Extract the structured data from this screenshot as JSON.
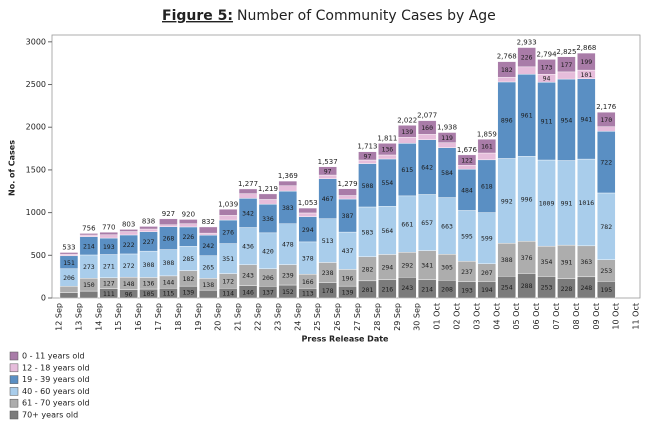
{
  "chart_data": {
    "type": "stacked_bar",
    "title_label": "Figure 5:",
    "title": "Number of Community Cases by Age",
    "x_label": "Press Release Date",
    "y_label": "No. of Cases",
    "categories": [
      "12 Sep",
      "13 Sep",
      "14 Sep",
      "15 Sep",
      "16 Sep",
      "17 Sep",
      "18 Sep",
      "19 Sep",
      "20 Sep",
      "21 Sep",
      "22 Sep",
      "23 Sep",
      "24 Sep",
      "25 Sep",
      "26 Sep",
      "27 Sep",
      "28 Sep",
      "29 Sep",
      "30 Sep",
      "01 Oct",
      "02 Oct",
      "03 Oct",
      "04 Oct",
      "05 Oct",
      "06 Oct",
      "07 Oct",
      "08 Oct",
      "09 Oct",
      "10 Oct",
      "11 Oct"
    ],
    "series": [
      {
        "name": "70+ years old",
        "color": "#7b7b7b",
        "values": [
          62,
          81,
          111,
          96,
          105,
          115,
          139,
          92,
          114,
          146,
          137,
          152,
          113,
          178,
          139,
          201,
          216,
          243,
          214,
          208,
          193,
          194,
          254,
          288,
          253,
          228,
          248,
          195,
          null,
          null
        ]
      },
      {
        "name": "61 - 70 years old",
        "color": "#adadad",
        "values": [
          75,
          150,
          127,
          148,
          136,
          144,
          182,
          138,
          172,
          243,
          206,
          239,
          166,
          238,
          196,
          282,
          294,
          292,
          341,
          305,
          237,
          207,
          388,
          376,
          354,
          391,
          363,
          253,
          null,
          null
        ]
      },
      {
        "name": "40 - 60 years old",
        "color": "#a9cdeb",
        "values": [
          206,
          273,
          271,
          272,
          308,
          308,
          285,
          265,
          351,
          436,
          420,
          478,
          378,
          513,
          437,
          583,
          564,
          661,
          657,
          663,
          595,
          599,
          992,
          996,
          1009,
          991,
          1016,
          782,
          null,
          null
        ]
      },
      {
        "name": "19 - 39 years old",
        "color": "#5a8fc3",
        "values": [
          151,
          214,
          193,
          222,
          227,
          268,
          226,
          242,
          276,
          342,
          336,
          383,
          294,
          467,
          387,
          508,
          554,
          615,
          642,
          584,
          484,
          618,
          896,
          961,
          911,
          954,
          941,
          722,
          null,
          null
        ]
      },
      {
        "name": "12 - 18 years old",
        "color": "#e6bddb",
        "values": [
          20,
          20,
          38,
          40,
          32,
          22,
          38,
          23,
          55,
          55,
          55,
          62,
          45,
          44,
          41,
          42,
          47,
          72,
          63,
          59,
          45,
          80,
          56,
          86,
          94,
          84,
          101,
          54,
          null,
          null
        ]
      },
      {
        "name": "0 - 11 years old",
        "color": "#a97ca8",
        "values": [
          19,
          18,
          30,
          25,
          30,
          70,
          50,
          72,
          71,
          55,
          65,
          55,
          57,
          97,
          79,
          97,
          136,
          139,
          160,
          119,
          122,
          161,
          182,
          226,
          173,
          177,
          199,
          170,
          null,
          null
        ]
      }
    ],
    "totals": {
      "values": [
        533,
        756,
        770,
        803,
        838,
        927,
        920,
        832,
        1039,
        1277,
        1219,
        1369,
        1053,
        1537,
        1279,
        1713,
        1811,
        2022,
        2077,
        1938,
        1676,
        1859,
        2768,
        2933,
        2794,
        2825,
        2868,
        2176,
        null,
        null
      ],
      "value_labels": [
        "533",
        "756",
        "770",
        "803",
        "838",
        "927",
        "920",
        "832",
        "1,039",
        "1,277",
        "1,219",
        "1,369",
        "1,053",
        "1,537",
        "1,279",
        "1,713",
        "1,811",
        "2,022",
        "2,077",
        "1,938",
        "1,676",
        "1,859",
        "2,768",
        "2,933",
        "2,794",
        "2,825",
        "2,868",
        "2,176",
        null,
        null
      ]
    },
    "ylim": [
      0,
      3080
    ],
    "yticks": [
      0,
      500,
      1000,
      1500,
      2000,
      2500,
      3000
    ],
    "grid": false,
    "legend": "bottom-left"
  }
}
